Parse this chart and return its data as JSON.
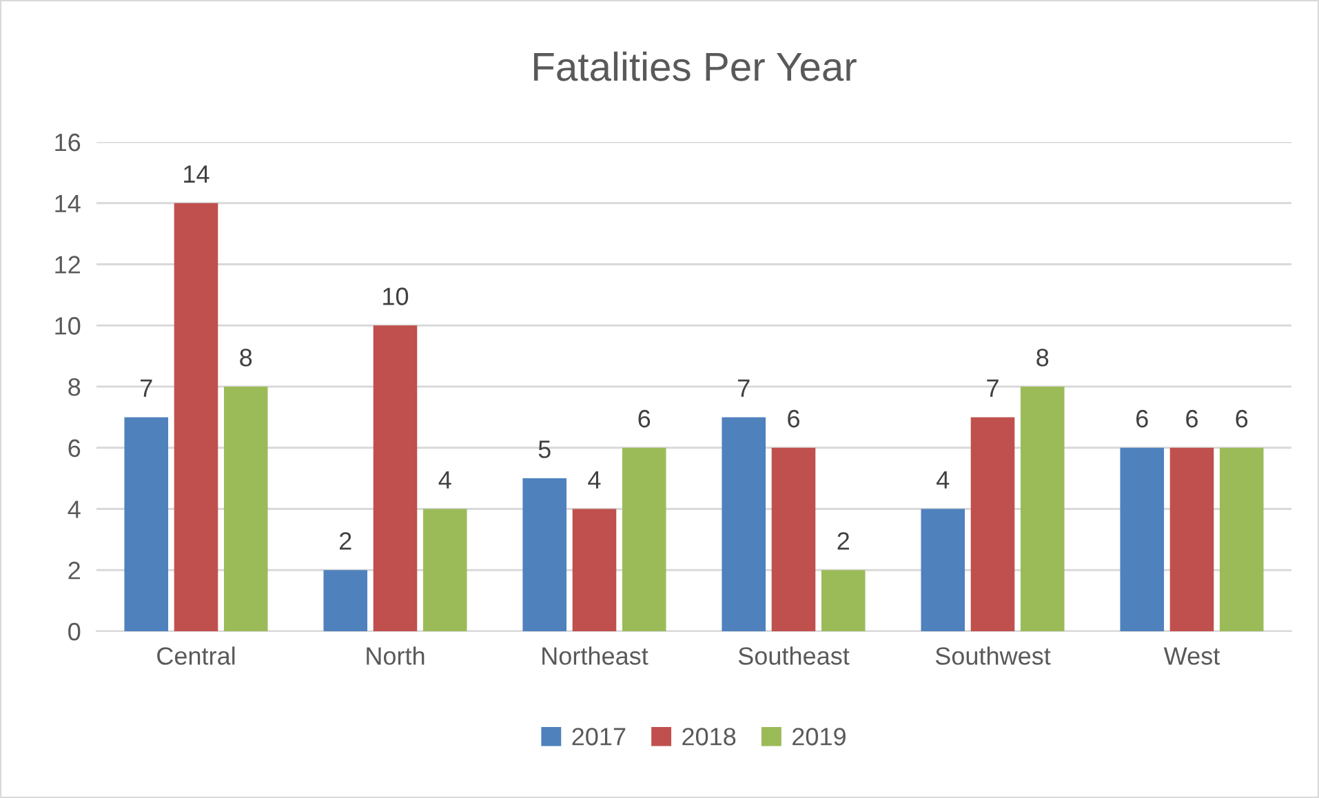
{
  "chart_data": {
    "type": "bar",
    "title": "Fatalities Per Year",
    "categories": [
      "Central",
      "North",
      "Northeast",
      "Southeast",
      "Southwest",
      "West"
    ],
    "series": [
      {
        "name": "2017",
        "color": "#4f81bd",
        "values": [
          7,
          2,
          5,
          7,
          4,
          6
        ]
      },
      {
        "name": "2018",
        "color": "#c0504d",
        "values": [
          14,
          10,
          4,
          6,
          7,
          6
        ]
      },
      {
        "name": "2019",
        "color": "#9bbb59",
        "values": [
          8,
          4,
          6,
          2,
          8,
          6
        ]
      }
    ],
    "ylim": [
      0,
      16
    ],
    "yticks": [
      0,
      2,
      4,
      6,
      8,
      10,
      12,
      14,
      16
    ],
    "grid": "y",
    "legend": "bottom",
    "data_labels": true
  }
}
